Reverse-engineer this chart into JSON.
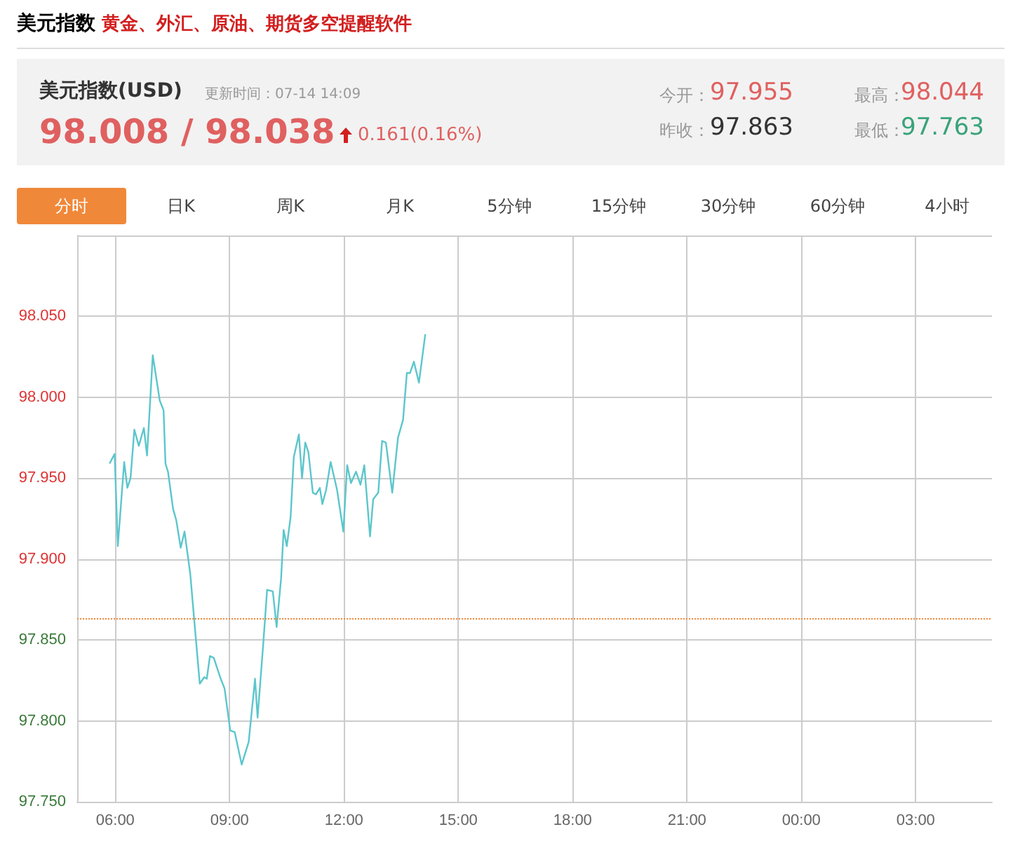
{
  "chart_data": {
    "type": "line",
    "title": "美元指数",
    "subtitle": "黄金、外汇、原油、期货多空提醒软件",
    "annotations": [
      "美元指数(USD)",
      "更新时间：07-14 14:09",
      "98.008 / 98.038",
      "0.161(0.16%)",
      "今开：",
      "97.955",
      "昨收：",
      "97.863",
      "最高：",
      "98.044",
      "最低：",
      "97.763",
      "分时",
      "日K",
      "周K",
      "月K",
      "5分钟",
      "15分钟",
      "30分钟",
      "60分钟",
      "4小时"
    ],
    "x": [
      "--07-14T05:51",
      "--07-14T05:59",
      "--07-14T06:04",
      "--07-14T06:14",
      "--07-14T06:19",
      "--07-14T06:24",
      "--07-14T06:30",
      "--07-14T06:37",
      "--07-14T06:45",
      "--07-14T06:50",
      "--07-14T06:59",
      "--07-14T07:10",
      "--07-14T07:16",
      "--07-14T07:19",
      "--07-14T07:23",
      "--07-14T07:31",
      "--07-14T07:36",
      "--07-14T07:43",
      "--07-14T07:49",
      "--07-14T07:58",
      "--07-14T08:05",
      "--07-14T08:13",
      "--07-14T08:20",
      "--07-14T08:24",
      "--07-14T08:29",
      "--07-14T08:35",
      "--07-14T08:46",
      "--07-14T08:52",
      "--07-14T09:01",
      "--07-14T09:08",
      "--07-14T09:19",
      "--07-14T09:30",
      "--07-14T09:40",
      "--07-14T09:44",
      "--07-14T09:53",
      "--07-14T09:59",
      "--07-14T10:08",
      "--07-14T10:14",
      "--07-14T10:21",
      "--07-14T10:25",
      "--07-14T10:30",
      "--07-14T10:36",
      "--07-14T10:41",
      "--07-14T10:49",
      "--07-14T10:54",
      "--07-14T10:59",
      "--07-14T11:04",
      "--07-14T11:11",
      "--07-14T11:16",
      "--07-14T11:22",
      "--07-14T11:26",
      "--07-14T11:32",
      "--07-14T11:39",
      "--07-14T11:49",
      "--07-14T11:59",
      "--07-14T12:05",
      "--07-14T12:11",
      "--07-14T12:19",
      "--07-14T12:26",
      "--07-14T12:32",
      "--07-14T12:41",
      "--07-14T12:46",
      "--07-14T12:54",
      "--07-14T13:00",
      "--07-14T13:06",
      "--07-14T13:16",
      "--07-14T13:25",
      "--07-14T13:33",
      "--07-14T13:39",
      "--07-14T13:44",
      "--07-14T13:50",
      "--07-14T13:58",
      "--07-14T14:08"
    ],
    "series": [
      {
        "color": "#5cc6cc",
        "values": [
          97.959,
          97.965,
          97.908,
          97.96,
          97.944,
          97.95,
          97.98,
          97.97,
          97.981,
          97.964,
          98.026,
          97.998,
          97.992,
          97.959,
          97.954,
          97.931,
          97.924,
          97.907,
          97.917,
          97.891,
          97.859,
          97.823,
          97.827,
          97.826,
          97.84,
          97.839,
          97.826,
          97.82,
          97.794,
          97.793,
          97.773,
          97.787,
          97.826,
          97.802,
          97.848,
          97.881,
          97.88,
          97.858,
          97.888,
          97.918,
          97.908,
          97.926,
          97.963,
          97.977,
          97.95,
          97.972,
          97.966,
          97.941,
          97.94,
          97.944,
          97.934,
          97.943,
          97.96,
          97.943,
          97.917,
          97.958,
          97.947,
          97.954,
          97.946,
          97.958,
          97.914,
          97.937,
          97.941,
          97.973,
          97.972,
          97.941,
          97.975,
          97.986,
          98.015,
          98.015,
          98.022,
          98.009,
          98.039
        ]
      }
    ],
    "xlim": [
      "--07-14T05:00",
      "--07-15T05:00"
    ],
    "xticks": [
      {
        "value": "--07-14T06:00",
        "label": "06:00"
      },
      {
        "value": "--07-14T09:00",
        "label": "09:00"
      },
      {
        "value": "--07-14T12:00",
        "label": "12:00"
      },
      {
        "value": "--07-14T15:00",
        "label": "15:00"
      },
      {
        "value": "--07-14T18:00",
        "label": "18:00"
      },
      {
        "value": "--07-14T21:00",
        "label": "21:00"
      },
      {
        "value": "--07-15T00:00",
        "label": "00:00"
      },
      {
        "value": "--07-15T03:00",
        "label": "03:00"
      }
    ],
    "ylim": [
      97.75,
      98.1
    ],
    "yticks": [
      {
        "value": 97.75,
        "label": "97.750"
      },
      {
        "value": 97.8,
        "label": "97.800"
      },
      {
        "value": 97.85,
        "label": "97.850"
      },
      {
        "value": 97.9,
        "label": "97.900"
      },
      {
        "value": 97.95,
        "label": "97.950"
      },
      {
        "value": 98.0,
        "label": "98.000"
      },
      {
        "value": 98.05,
        "label": "98.050"
      },
      {
        "value": 98.1,
        "label": null
      }
    ],
    "ref_lines": [
      {
        "axis": "y",
        "value": 97.863,
        "color": "#f0883a",
        "line_style": "dotted"
      }
    ],
    "grid": true,
    "marker": "none",
    "line_style": "solid"
  }
}
